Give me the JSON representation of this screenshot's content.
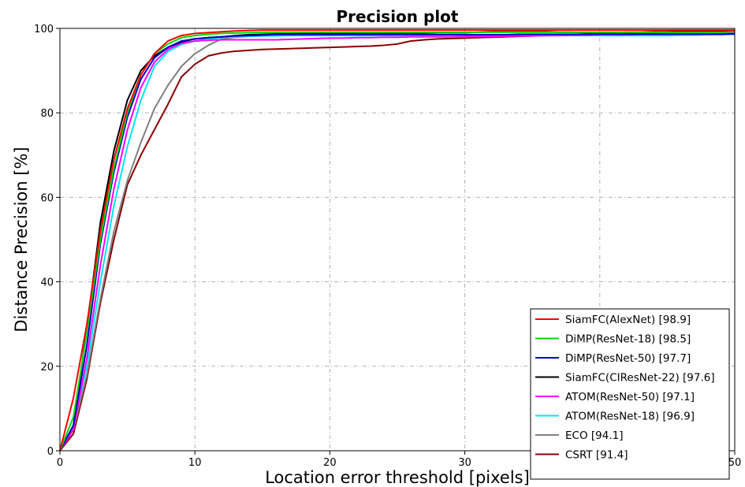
{
  "chart_data": {
    "type": "line",
    "title": "Precision plot",
    "xlabel": "Location error threshold [pixels]",
    "ylabel": "Distance Precision [%]",
    "xlim": [
      0,
      50
    ],
    "ylim": [
      0,
      100
    ],
    "xticks": [
      "0",
      "10",
      "20",
      "30",
      "40",
      "50"
    ],
    "yticks": [
      "0",
      "20",
      "40",
      "60",
      "80",
      "100"
    ],
    "grid": true,
    "legend_position": "lower-right",
    "x": [
      0,
      1,
      2,
      3,
      4,
      5,
      6,
      7,
      8,
      9,
      10,
      11,
      12,
      13,
      14,
      15,
      16,
      17,
      18,
      19,
      20,
      21,
      22,
      23,
      24,
      25,
      26,
      27,
      28,
      29,
      30,
      31,
      32,
      33,
      34,
      35,
      36,
      37,
      38,
      39,
      40,
      41,
      42,
      43,
      44,
      45,
      46,
      47,
      48,
      49,
      50
    ],
    "series": [
      {
        "name": "SiamFC(AlexNet) [98.9]",
        "color": "#ff0000",
        "values": [
          0,
          12.5,
          30,
          52,
          69,
          81,
          89,
          94,
          97,
          98.3,
          98.8,
          99,
          99.2,
          99.4,
          99.5,
          99.6,
          99.6,
          99.6,
          99.6,
          99.6,
          99.6,
          99.6,
          99.6,
          99.6,
          99.6,
          99.6,
          99.6,
          99.6,
          99.6,
          99.6,
          99.6,
          99.6,
          99.6,
          99.6,
          99.6,
          99.6,
          99.6,
          99.6,
          99.6,
          99.6,
          99.6,
          99.6,
          99.6,
          99.6,
          99.6,
          99.6,
          99.6,
          99.6,
          99.6,
          99.6,
          99.6
        ]
      },
      {
        "name": "DiMP(ResNet-18) [98.5]",
        "color": "#00dd00",
        "values": [
          0,
          8,
          28,
          50,
          67,
          80,
          89,
          94,
          96.3,
          97.8,
          98.3,
          98.6,
          98.8,
          98.9,
          99,
          99.1,
          99.1,
          99.1,
          99.1,
          99.1,
          99.1,
          99.1,
          99.1,
          99.1,
          99.1,
          99.1,
          99.1,
          99.1,
          99.1,
          99.1,
          99.1,
          99.1,
          99.1,
          99.1,
          99.1,
          99.1,
          99.1,
          99.1,
          99.1,
          99.1,
          99.1,
          99.1,
          99.1,
          99.1,
          99.1,
          99.1,
          99.1,
          99.1,
          99.1,
          99.1,
          99.2
        ]
      },
      {
        "name": "DiMP(ResNet-50) [97.7]",
        "color": "#0000cc",
        "values": [
          0,
          6,
          25,
          49,
          66,
          79,
          88,
          93,
          95.5,
          97,
          97.5,
          97.8,
          98,
          98.2,
          98.3,
          98.4,
          98.5,
          98.5,
          98.5,
          98.5,
          98.5,
          98.5,
          98.5,
          98.5,
          98.5,
          98.5,
          98.5,
          98.5,
          98.5,
          98.5,
          98.5,
          98.5,
          98.5,
          98.5,
          98.6,
          98.6,
          98.6,
          98.6,
          98.6,
          98.6,
          98.6,
          98.6,
          98.6,
          98.6,
          98.6,
          98.6,
          98.6,
          98.6,
          98.6,
          98.6,
          98.7
        ]
      },
      {
        "name": "SiamFC(CIResNet-22) [97.6]",
        "color": "#000000",
        "values": [
          0,
          6,
          29,
          54,
          71,
          83,
          90,
          93.5,
          95.5,
          96.8,
          97.5,
          97.8,
          98,
          98.3,
          98.5,
          98.6,
          98.7,
          98.7,
          98.8,
          98.8,
          98.8,
          98.8,
          98.9,
          98.9,
          98.9,
          98.9,
          98.9,
          98.9,
          99,
          99,
          99,
          99.1,
          99.2,
          99.2,
          99.2,
          99.2,
          99.2,
          99.1,
          99.1,
          99,
          99,
          99,
          99.1,
          99.1,
          99.2,
          99.2,
          99.3,
          99.3,
          99.4,
          99.4,
          99.5
        ]
      },
      {
        "name": "ATOM(ResNet-50) [97.1]",
        "color": "#ff00ff",
        "values": [
          0,
          5,
          22,
          44,
          62,
          76,
          86,
          92,
          95,
          96.5,
          97,
          97.2,
          97.3,
          97.3,
          97.3,
          97.3,
          97.3,
          97.4,
          97.5,
          97.6,
          97.7,
          97.7,
          97.8,
          97.8,
          97.9,
          97.9,
          98,
          98,
          98,
          98,
          98.1,
          98.1,
          98.1,
          98.2,
          98.2,
          98.2,
          98.3,
          98.3,
          98.4,
          98.4,
          98.5,
          98.5,
          98.5,
          98.6,
          98.6,
          98.7,
          98.7,
          98.8,
          98.8,
          98.9,
          98.9
        ]
      },
      {
        "name": "ATOM(ResNet-18) [96.9]",
        "color": "#00e5ff",
        "values": [
          0,
          6,
          20,
          40,
          58,
          72,
          83,
          91,
          94.5,
          96.2,
          97,
          97.5,
          97.8,
          98,
          98.1,
          98.2,
          98.2,
          98.3,
          98.3,
          98.3,
          98.3,
          98.3,
          98.3,
          98.3,
          98.3,
          98.3,
          98.3,
          98.3,
          98.3,
          98.3,
          98.3,
          98.3,
          98.3,
          98.3,
          98.3,
          98.3,
          98.3,
          98.3,
          98.3,
          98.3,
          98.3,
          98.3,
          98.3,
          98.3,
          98.3,
          98.3,
          98.4,
          98.4,
          98.5,
          98.5,
          98.6
        ]
      },
      {
        "name": "ECO [94.1]",
        "color": "#808080",
        "values": [
          0,
          5,
          18,
          36,
          52,
          64,
          73,
          81,
          86.5,
          91,
          94,
          96,
          97.5,
          97.9,
          98.1,
          98.3,
          98.4,
          98.5,
          98.5,
          98.5,
          98.5,
          98.5,
          98.5,
          98.5,
          98.5,
          98.5,
          98.5,
          98.5,
          98.5,
          98.5,
          98.5,
          98.5,
          98.5,
          98.5,
          98.5,
          98.5,
          98.5,
          98.5,
          98.5,
          98.5,
          98.5,
          98.5,
          98.5,
          98.5,
          98.5,
          98.5,
          98.5,
          98.5,
          98.6,
          98.6,
          98.7
        ]
      },
      {
        "name": "CSRT [91.4]",
        "color": "#8b0000",
        "values": [
          0,
          4,
          17,
          35,
          50,
          63,
          70,
          76,
          82,
          88.5,
          91.5,
          93.5,
          94.2,
          94.6,
          94.8,
          95,
          95.1,
          95.2,
          95.3,
          95.4,
          95.5,
          95.6,
          95.7,
          95.8,
          96,
          96.3,
          97,
          97.3,
          97.5,
          97.6,
          97.7,
          97.8,
          97.9,
          98,
          98.1,
          98.2,
          98.3,
          98.4,
          98.5,
          98.5,
          98.6,
          98.6,
          98.7,
          98.7,
          98.8,
          98.8,
          98.9,
          98.9,
          99,
          99,
          99.1
        ]
      }
    ]
  }
}
